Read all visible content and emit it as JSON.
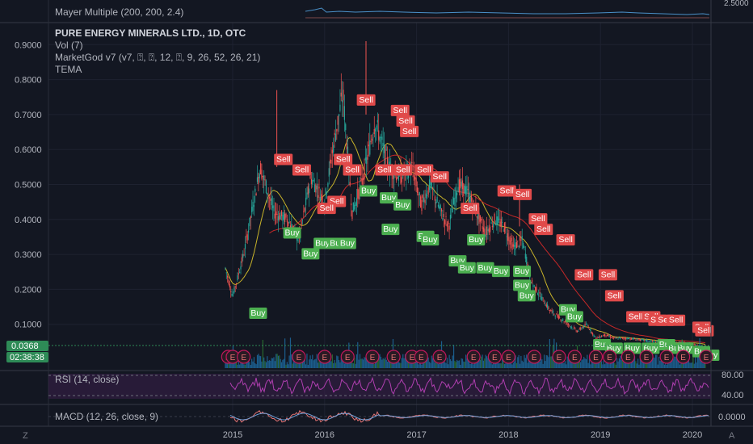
{
  "header": {
    "symbol_title": "PURE ENERGY MINERALS LTD., 1D, OTC",
    "indicators": [
      "Vol (7)",
      "MarketGod v7 (v7, ⍰, ⍰, 12, ⍰, 9, 26, 52, 26, 21)",
      "TEMA"
    ]
  },
  "mayer": {
    "label": "Mayer Multiple (200, 200, 2.4)",
    "axis_label": "2.5000"
  },
  "rsi": {
    "label": "RSI (14, close)",
    "upper_value": "80.00",
    "lower_value": "40.00"
  },
  "macd": {
    "label": "MACD (12, 26, close, 9)",
    "value": "0.0000"
  },
  "price_tags": {
    "last_price": "0.0368",
    "countdown": "02:38:38"
  },
  "footer": {
    "left_button": "Z",
    "right_button": "A"
  },
  "earnings_marker": "E",
  "colors": {
    "background": "#131722",
    "grid": "#1e2230",
    "text": "#b2b5be",
    "buy": "#4caf50",
    "sell": "#e04a4a",
    "up_candle": "#26a69a",
    "down_candle": "#ef5350",
    "volume": "#1e6fa8",
    "rsi_line": "#b03fb0",
    "tema": "#c8b32a",
    "ma_red": "#c62828",
    "macd_line": "#e57373",
    "tag_green": "#2e8b57"
  },
  "chart_data": {
    "type": "line",
    "title": "PURE ENERGY MINERALS LTD., 1D, OTC",
    "xlabel": "",
    "ylabel": "",
    "x_ticks": [
      "2015",
      "2016",
      "2017",
      "2018",
      "2019",
      "2020"
    ],
    "y_ticks": [
      "0.1000",
      "0.2000",
      "0.3000",
      "0.4000",
      "0.5000",
      "0.6000",
      "0.7000",
      "0.8000",
      "0.9000"
    ],
    "ylim": [
      0.0,
      0.95
    ],
    "x": [
      2014.92,
      2015.0,
      2015.12,
      2015.3,
      2015.45,
      2015.6,
      2015.72,
      2015.85,
      2016.0,
      2016.1,
      2016.2,
      2016.3,
      2016.4,
      2016.55,
      2016.7,
      2016.82,
      2016.95,
      2017.05,
      2017.15,
      2017.25,
      2017.35,
      2017.45,
      2017.55,
      2017.65,
      2017.75,
      2017.85,
      2017.95,
      2018.05,
      2018.15,
      2018.25,
      2018.35,
      2018.45,
      2018.55,
      2018.65,
      2018.75,
      2018.85,
      2018.95,
      2019.05,
      2019.15,
      2019.3,
      2019.45,
      2019.6,
      2019.75,
      2019.9,
      2020.05,
      2020.15
    ],
    "series": [
      {
        "values": [
          0.26,
          0.18,
          0.3,
          0.55,
          0.42,
          0.4,
          0.34,
          0.52,
          0.45,
          0.62,
          0.76,
          0.42,
          0.5,
          0.68,
          0.55,
          0.52,
          0.55,
          0.44,
          0.5,
          0.43,
          0.38,
          0.5,
          0.48,
          0.42,
          0.36,
          0.4,
          0.38,
          0.32,
          0.34,
          0.22,
          0.18,
          0.14,
          0.12,
          0.1,
          0.08,
          0.1,
          0.06,
          0.07,
          0.06,
          0.06,
          0.055,
          0.05,
          0.045,
          0.05,
          0.04,
          0.037
        ]
      }
    ],
    "signals": [
      {
        "type": "Sell",
        "x": 2015.45,
        "y": 0.56
      },
      {
        "type": "Sell",
        "x": 2015.65,
        "y": 0.53
      },
      {
        "type": "Sell",
        "x": 2016.1,
        "y": 0.56
      },
      {
        "type": "Sell",
        "x": 2016.2,
        "y": 0.53
      },
      {
        "type": "Sell",
        "x": 2016.03,
        "y": 0.44
      },
      {
        "type": "Sell",
        "x": 2015.92,
        "y": 0.42
      },
      {
        "type": "Sell",
        "x": 2016.35,
        "y": 0.73
      },
      {
        "type": "Sell",
        "x": 2016.72,
        "y": 0.7
      },
      {
        "type": "Sell",
        "x": 2016.78,
        "y": 0.67
      },
      {
        "type": "Sell",
        "x": 2016.82,
        "y": 0.64
      },
      {
        "type": "Sell",
        "x": 2016.55,
        "y": 0.53
      },
      {
        "type": "Sell",
        "x": 2016.75,
        "y": 0.53
      },
      {
        "type": "Sell",
        "x": 2016.98,
        "y": 0.53
      },
      {
        "type": "Sell",
        "x": 2017.15,
        "y": 0.51
      },
      {
        "type": "Sell",
        "x": 2017.48,
        "y": 0.42
      },
      {
        "type": "Sell",
        "x": 2017.88,
        "y": 0.47
      },
      {
        "type": "Sell",
        "x": 2018.05,
        "y": 0.46
      },
      {
        "type": "Sell",
        "x": 2018.22,
        "y": 0.39
      },
      {
        "type": "Sell",
        "x": 2018.28,
        "y": 0.36
      },
      {
        "type": "Sell",
        "x": 2018.52,
        "y": 0.33
      },
      {
        "type": "Sell",
        "x": 2018.72,
        "y": 0.23
      },
      {
        "type": "Sell",
        "x": 2018.98,
        "y": 0.23
      },
      {
        "type": "Sell",
        "x": 2019.05,
        "y": 0.17
      },
      {
        "type": "Sell",
        "x": 2019.28,
        "y": 0.11
      },
      {
        "type": "Sell",
        "x": 2019.45,
        "y": 0.11
      },
      {
        "type": "Sell",
        "x": 2019.52,
        "y": 0.1
      },
      {
        "type": "Sell",
        "x": 2019.6,
        "y": 0.1
      },
      {
        "type": "Sell",
        "x": 2019.72,
        "y": 0.1
      },
      {
        "type": "Sell",
        "x": 2020.0,
        "y": 0.08
      },
      {
        "type": "Sell",
        "x": 2020.03,
        "y": 0.07
      },
      {
        "type": "Buy",
        "x": 2015.18,
        "y": 0.12
      },
      {
        "type": "Buy",
        "x": 2015.55,
        "y": 0.35
      },
      {
        "type": "Buy",
        "x": 2015.75,
        "y": 0.29
      },
      {
        "type": "Buy",
        "x": 2015.88,
        "y": 0.32
      },
      {
        "type": "Buy",
        "x": 2016.04,
        "y": 0.32
      },
      {
        "type": "Buy",
        "x": 2016.15,
        "y": 0.32
      },
      {
        "type": "Buy",
        "x": 2016.38,
        "y": 0.47
      },
      {
        "type": "Buy",
        "x": 2016.6,
        "y": 0.45
      },
      {
        "type": "Buy",
        "x": 2016.62,
        "y": 0.36
      },
      {
        "type": "Buy",
        "x": 2016.75,
        "y": 0.43
      },
      {
        "type": "Buy",
        "x": 2017.0,
        "y": 0.34
      },
      {
        "type": "Buy",
        "x": 2017.05,
        "y": 0.33
      },
      {
        "type": "Buy",
        "x": 2017.35,
        "y": 0.27
      },
      {
        "type": "Buy",
        "x": 2017.45,
        "y": 0.25
      },
      {
        "type": "Buy",
        "x": 2017.55,
        "y": 0.33
      },
      {
        "type": "Buy",
        "x": 2017.65,
        "y": 0.25
      },
      {
        "type": "Buy",
        "x": 2017.82,
        "y": 0.24
      },
      {
        "type": "Buy",
        "x": 2018.05,
        "y": 0.24
      },
      {
        "type": "Buy",
        "x": 2018.05,
        "y": 0.2
      },
      {
        "type": "Buy",
        "x": 2018.1,
        "y": 0.17
      },
      {
        "type": "Buy",
        "x": 2018.55,
        "y": 0.13
      },
      {
        "type": "Buy",
        "x": 2018.62,
        "y": 0.11
      },
      {
        "type": "Buy",
        "x": 2018.92,
        "y": 0.03
      },
      {
        "type": "Buy",
        "x": 2019.05,
        "y": 0.02
      },
      {
        "type": "Buy",
        "x": 2019.25,
        "y": 0.02
      },
      {
        "type": "Buy",
        "x": 2019.45,
        "y": 0.02
      },
      {
        "type": "Buy",
        "x": 2019.62,
        "y": 0.03
      },
      {
        "type": "Buy",
        "x": 2019.72,
        "y": 0.02
      },
      {
        "type": "Buy",
        "x": 2019.82,
        "y": 0.02
      },
      {
        "type": "Buy",
        "x": 2020.0,
        "y": 0.01
      },
      {
        "type": "Buy",
        "x": 2020.1,
        "y": 0.0
      }
    ],
    "earnings_x": [
      2014.95,
      2015.0,
      2015.12,
      2015.72,
      2016.0,
      2016.25,
      2016.52,
      2016.75,
      2016.95,
      2017.05,
      2017.25,
      2017.62,
      2017.85,
      2018.0,
      2018.28,
      2018.55,
      2018.72,
      2018.95,
      2019.1,
      2019.3,
      2019.5,
      2019.72,
      2019.9,
      2020.15
    ]
  }
}
